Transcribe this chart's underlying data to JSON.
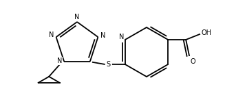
{
  "bg_color": "#ffffff",
  "line_color": "#000000",
  "font_size": 7.0,
  "line_width": 1.3,
  "figsize": [
    3.27,
    1.49
  ],
  "dpi": 100,
  "xlim": [
    0,
    327
  ],
  "ylim": [
    0,
    149
  ]
}
